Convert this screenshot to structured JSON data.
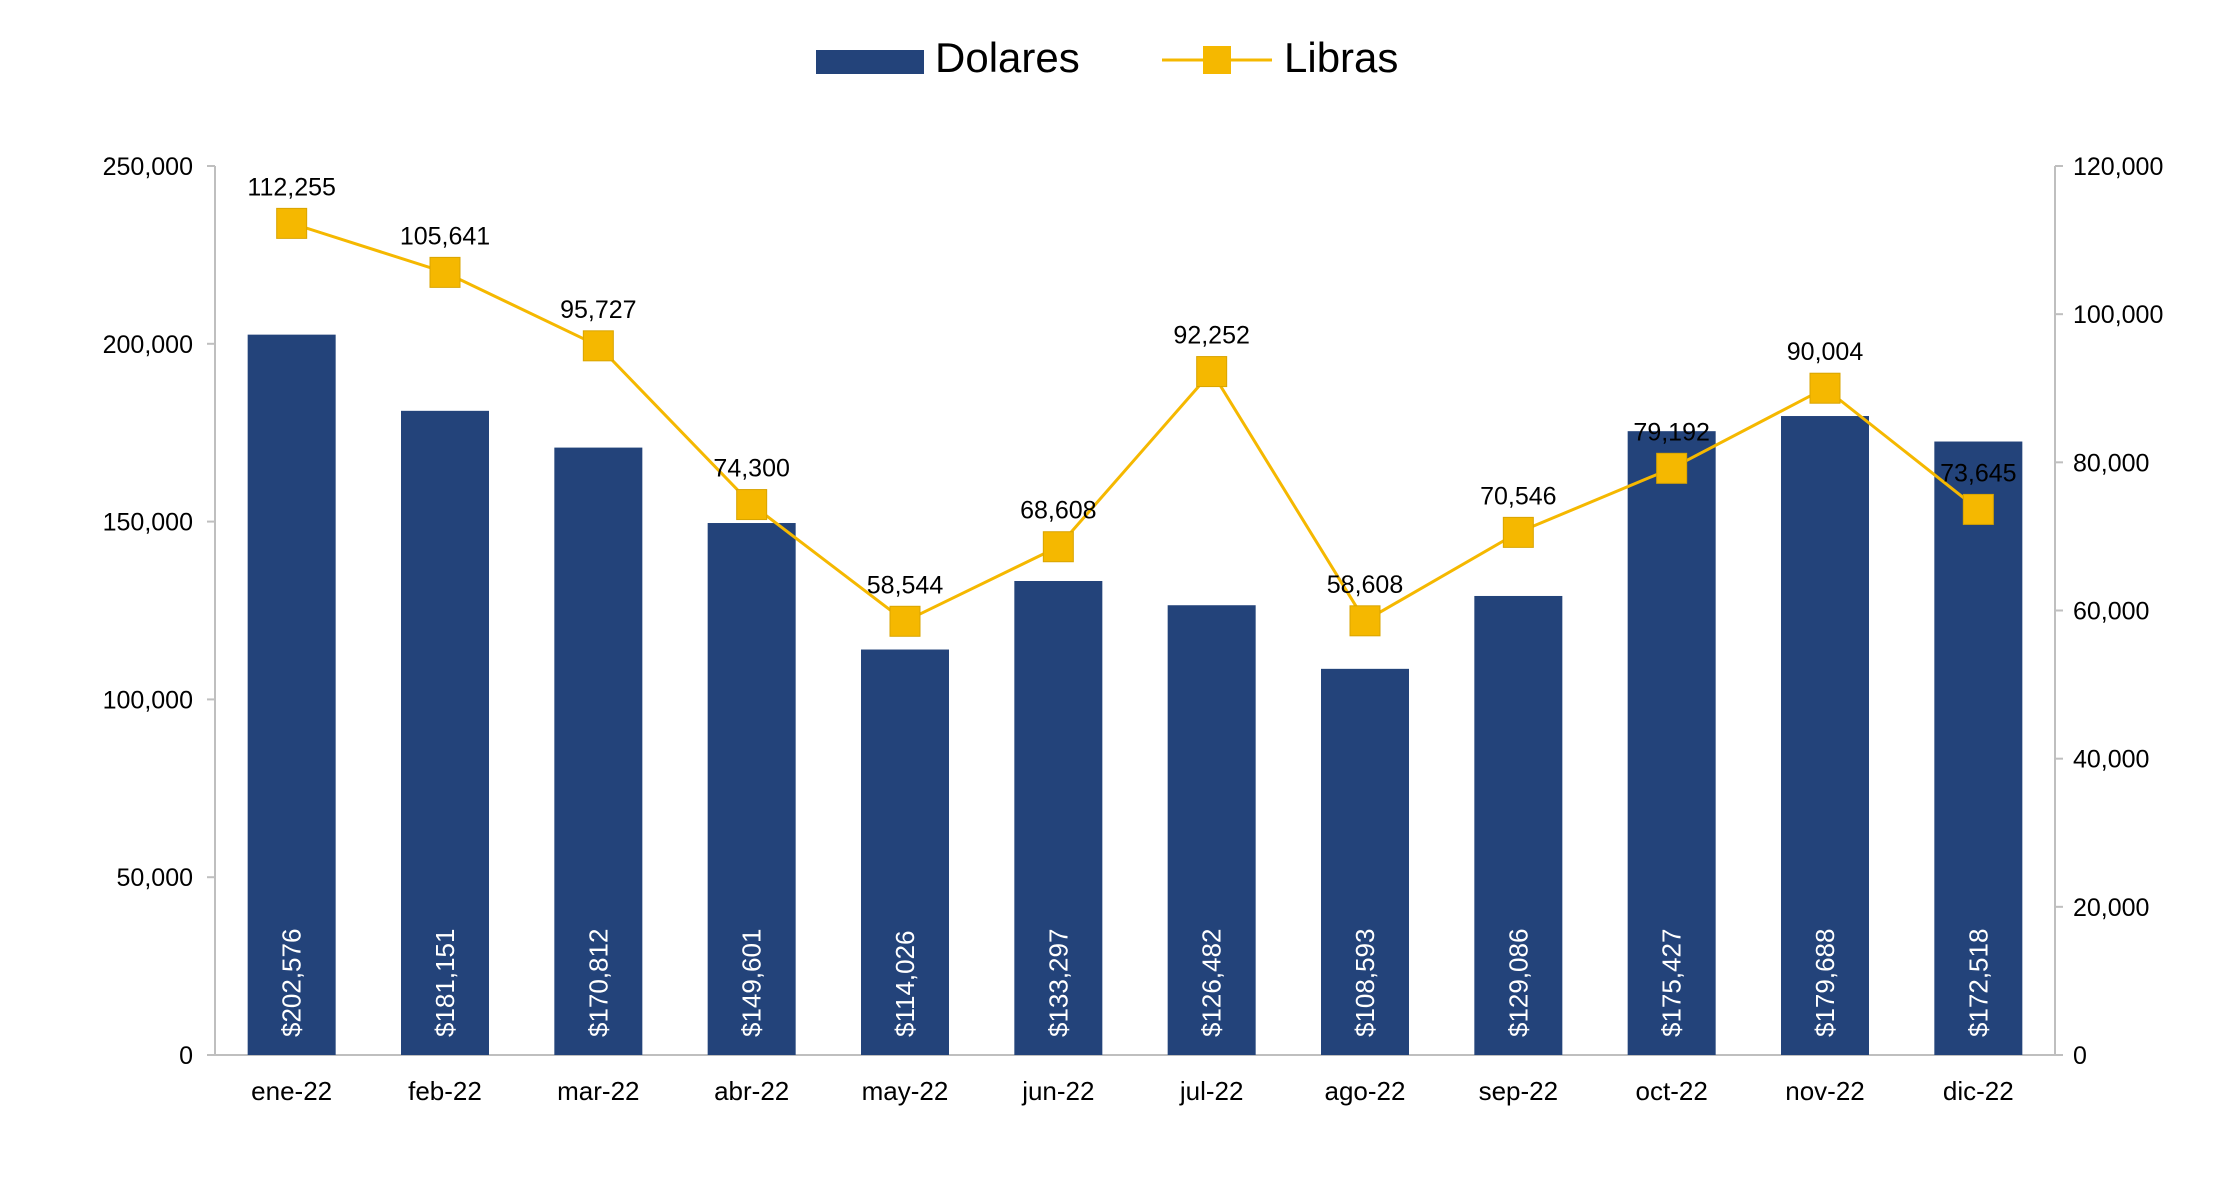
{
  "chart_data": {
    "type": "bar",
    "categories": [
      "ene-22",
      "feb-22",
      "mar-22",
      "abr-22",
      "may-22",
      "jun-22",
      "jul-22",
      "ago-22",
      "sep-22",
      "oct-22",
      "nov-22",
      "dic-22"
    ],
    "series": [
      {
        "name": "Dolares",
        "type": "bar",
        "axis": "left",
        "color": "#23437a",
        "values": [
          202576,
          181151,
          170812,
          149601,
          114026,
          133297,
          126482,
          108593,
          129086,
          175427,
          179688,
          172518
        ],
        "data_labels": [
          "$202,576",
          "$181,151",
          "$170,812",
          "$149,601",
          "$114,026",
          "$133,297",
          "$126,482",
          "$108,593",
          "$129,086",
          "$175,427",
          "$179,688",
          "$172,518"
        ]
      },
      {
        "name": "Libras",
        "type": "line",
        "axis": "right",
        "color": "#f5b800",
        "values": [
          112255,
          105641,
          95727,
          74300,
          58544,
          68608,
          92252,
          58608,
          70546,
          79192,
          90004,
          73645
        ],
        "data_labels": [
          "112,255",
          "105,641",
          "95,727",
          "74,300",
          "58,544",
          "68,608",
          "92,252",
          "58,608",
          "70,546",
          "79,192",
          "90,004",
          "73,645"
        ]
      }
    ],
    "y_left": {
      "min": 0,
      "max": 250000,
      "ticks": [
        "0",
        "50,000",
        "100,000",
        "150,000",
        "200,000",
        "250,000"
      ],
      "tick_values": [
        0,
        50000,
        100000,
        150000,
        200000,
        250000
      ]
    },
    "y_right": {
      "min": 0,
      "max": 120000,
      "ticks": [
        "0",
        "20,000",
        "40,000",
        "60,000",
        "80,000",
        "100,000",
        "120,000"
      ],
      "tick_values": [
        0,
        20000,
        40000,
        60000,
        80000,
        100000,
        120000
      ]
    },
    "title": "",
    "xlabel": "",
    "ylabel": "",
    "grid": false,
    "legend_position": "top-center"
  }
}
